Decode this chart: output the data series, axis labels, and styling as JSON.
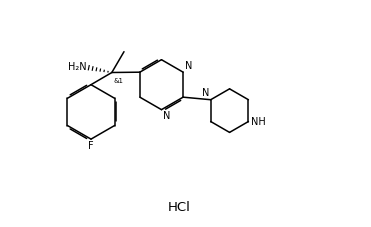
{
  "background_color": "#ffffff",
  "line_color": "#000000",
  "text_color": "#000000",
  "fs": 7.0,
  "lw": 1.1,
  "figsize": [
    3.71,
    2.27
  ],
  "dpi": 100,
  "xlim": [
    0,
    10
  ],
  "ylim": [
    0,
    7
  ]
}
